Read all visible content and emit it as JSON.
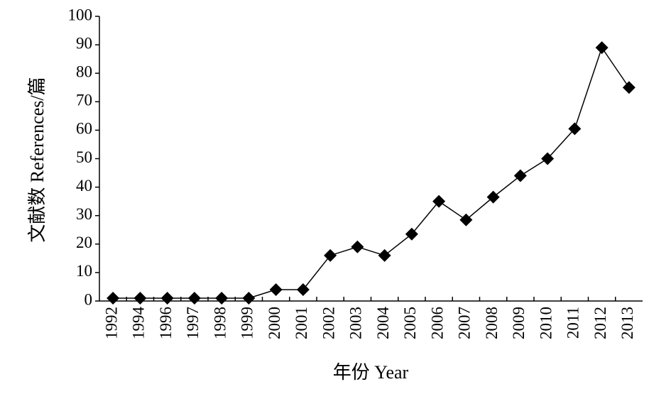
{
  "chart_data": {
    "type": "line",
    "y_label": "文献数 References/篇",
    "x_label": "年份 Year",
    "categories": [
      "1992",
      "1994",
      "1996",
      "1997",
      "1998",
      "1999",
      "2000",
      "2001",
      "2002",
      "2003",
      "2004",
      "2005",
      "2006",
      "2007",
      "2008",
      "2009",
      "2010",
      "2011",
      "2012",
      "2013"
    ],
    "series": [
      {
        "color": "#000000",
        "values": [
          1,
          1,
          1,
          1,
          1,
          1,
          4,
          4,
          16,
          19,
          16,
          23.5,
          35,
          28.5,
          36.5,
          44,
          50,
          60.5,
          89,
          75
        ]
      }
    ],
    "ylim": [
      0,
      100
    ],
    "yticks": [
      0,
      10,
      20,
      30,
      40,
      50,
      60,
      70,
      80,
      90,
      100
    ]
  }
}
